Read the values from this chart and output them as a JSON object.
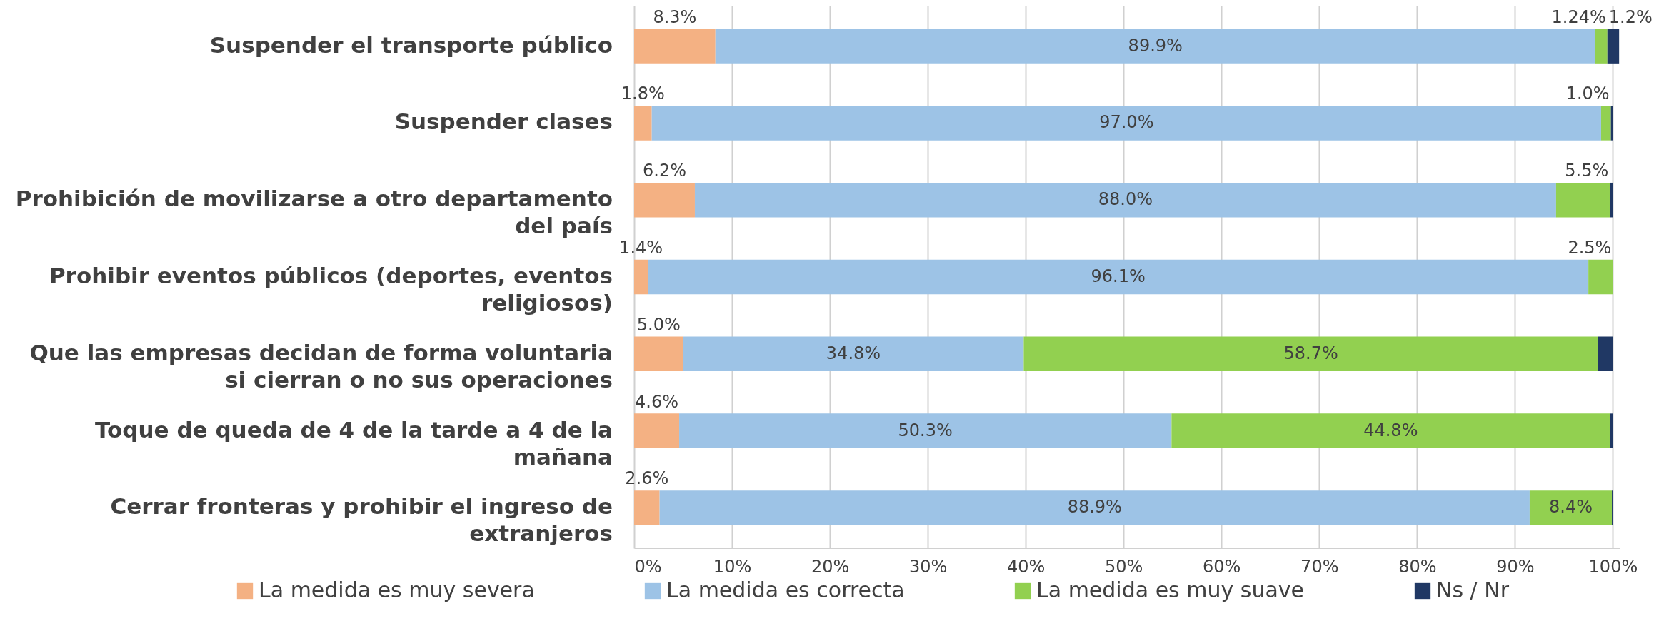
{
  "chart_data": {
    "type": "bar",
    "orientation": "horizontal",
    "stacked": true,
    "categories": [
      "Suspender el transporte público",
      "Suspender clases",
      "Prohibición de movilizarse a otro departamento del país",
      "Prohibir eventos públicos (deportes, eventos religiosos)",
      "Que las empresas decidan de forma voluntaria si cierran o no sus operaciones",
      "Toque de queda de 4 de la tarde a 4 de la mañana",
      "Cerrar fronteras y prohibir el ingreso de extranjeros"
    ],
    "series": [
      {
        "name": "La medida es muy severa",
        "color": "#f4b183",
        "values": [
          8.3,
          1.8,
          6.2,
          1.4,
          5.0,
          4.6,
          2.6
        ],
        "value_labels": [
          "8.3%",
          "1.8%",
          "6.2%",
          "1.4%",
          "5.0%",
          "4.6%",
          "2.6%"
        ]
      },
      {
        "name": "La medida es correcta",
        "color": "#9dc3e6",
        "values": [
          89.9,
          97.0,
          88.0,
          96.1,
          34.8,
          50.3,
          88.9
        ],
        "value_labels": [
          "89.9%",
          "97.0%",
          "88.0%",
          "96.1%",
          "34.8%",
          "50.3%",
          "88.9%"
        ]
      },
      {
        "name": "La medida es muy suave",
        "color": "#92d050",
        "values": [
          1.24,
          1.0,
          5.5,
          2.5,
          58.7,
          44.8,
          8.4
        ],
        "value_labels": [
          "1.24%",
          "1.0%",
          "5.5%",
          "2.5%",
          "58.7%",
          "44.8%",
          "8.4%"
        ]
      },
      {
        "name": "Ns / Nr",
        "color": "#203864",
        "values": [
          1.2,
          0.2,
          0.3,
          0,
          1.5,
          0.3,
          0.1
        ],
        "value_labels": [
          "1.2%",
          null,
          null,
          null,
          null,
          null,
          null
        ]
      }
    ],
    "xlim": [
      0,
      100.7
    ],
    "xticks": [
      {
        "value": 0,
        "label": "0%"
      },
      {
        "value": 10,
        "label": "10%"
      },
      {
        "value": 20,
        "label": "20%"
      },
      {
        "value": 30,
        "label": "30%"
      },
      {
        "value": 40,
        "label": "40%"
      },
      {
        "value": 50,
        "label": "50%"
      },
      {
        "value": 60,
        "label": "60%"
      },
      {
        "value": 70,
        "label": "70%"
      },
      {
        "value": 80,
        "label": "80%"
      },
      {
        "value": 90,
        "label": "90%"
      },
      {
        "value": 100,
        "label": "100%"
      }
    ],
    "grid": "x",
    "legend": "bottom"
  }
}
